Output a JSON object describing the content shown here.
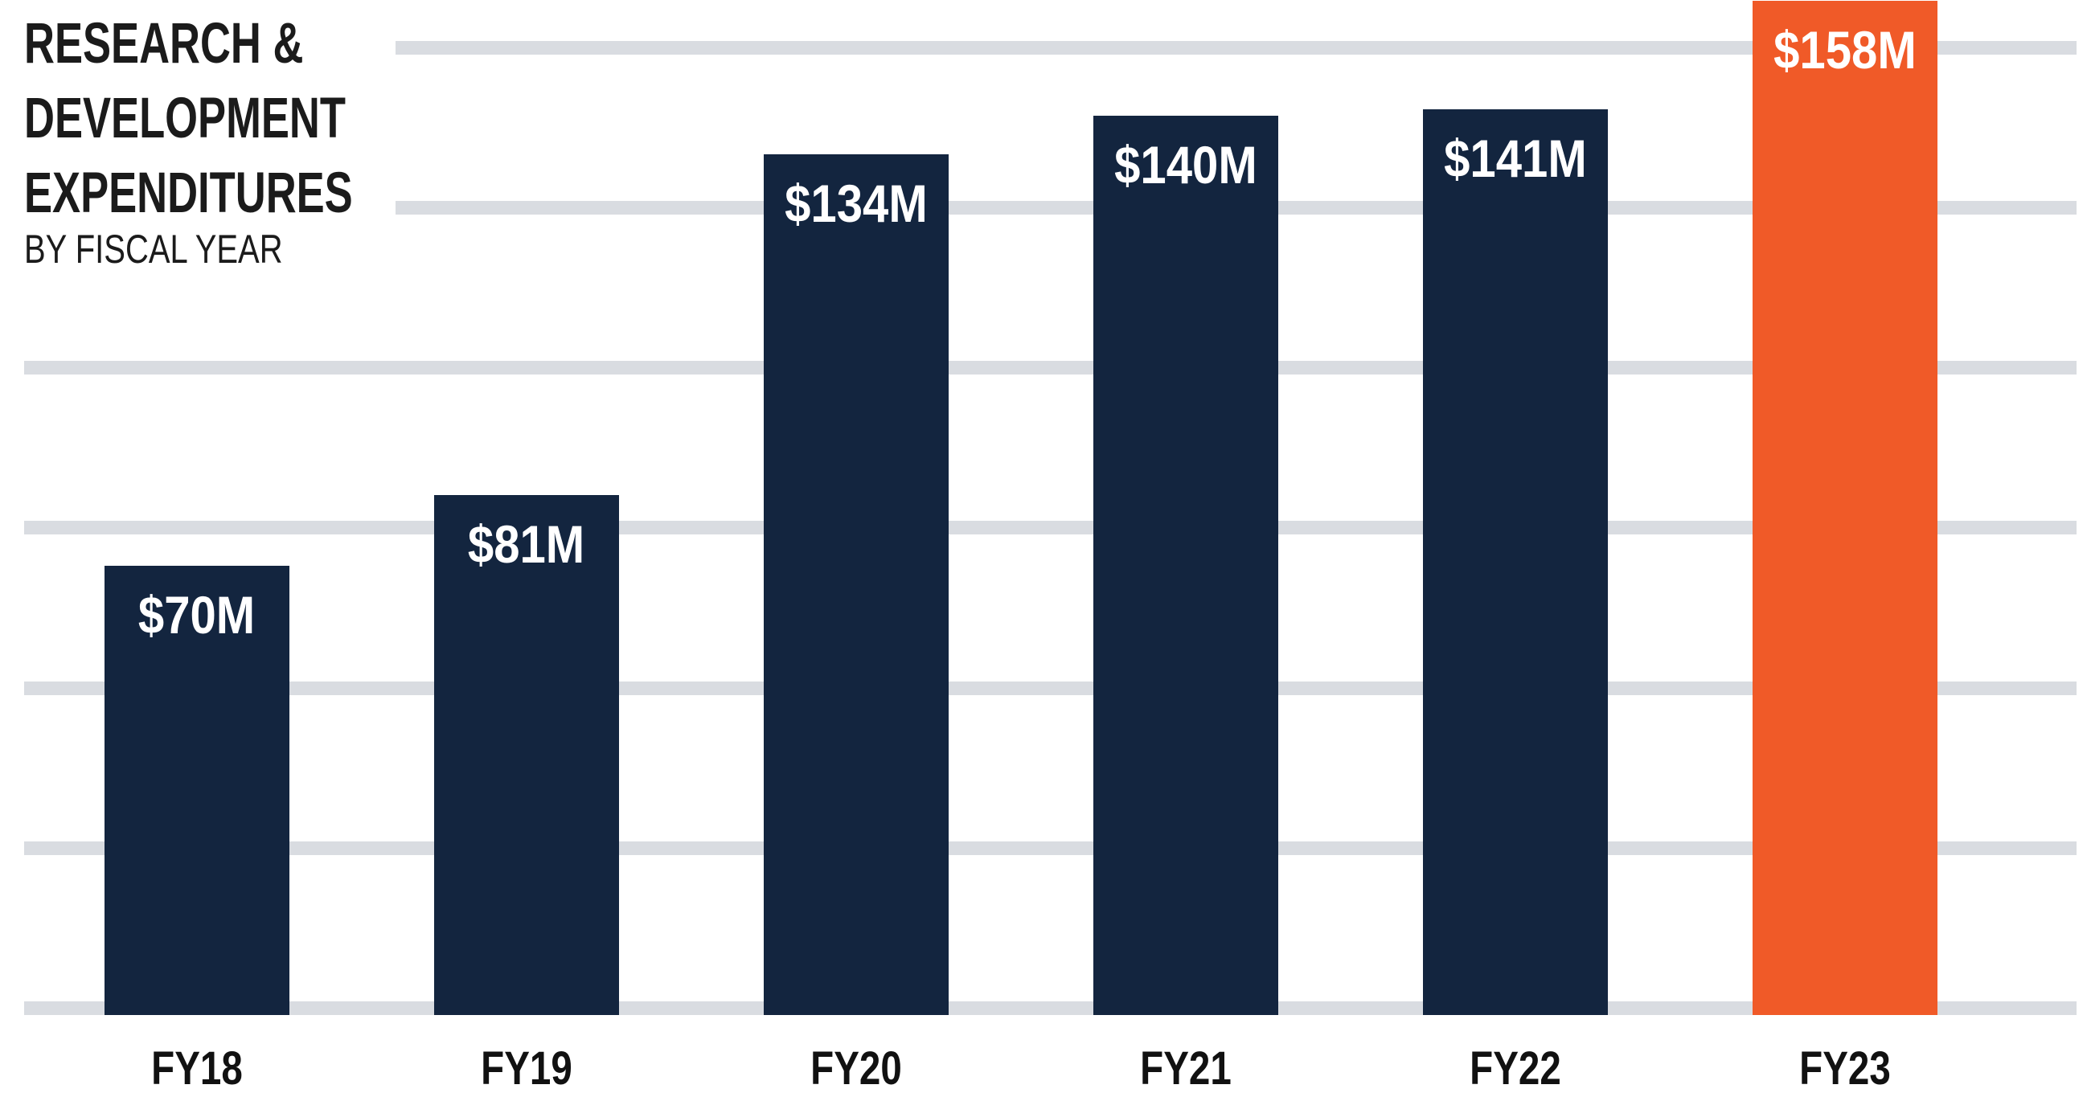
{
  "header": {
    "title_lines": [
      "RESEARCH &",
      "DEVELOPMENT",
      "EXPENDITURES"
    ],
    "subtitle": "BY FISCAL YEAR"
  },
  "chart_data": {
    "type": "bar",
    "title": "RESEARCH & DEVELOPMENT EXPENDITURES",
    "subtitle": "BY FISCAL YEAR",
    "categories": [
      "FY18",
      "FY19",
      "FY20",
      "FY21",
      "FY22",
      "FY23"
    ],
    "values": [
      70,
      81,
      134,
      140,
      141,
      158
    ],
    "bar_labels": [
      "$70M",
      "$81M",
      "$134M",
      "$140M",
      "$141M",
      "$158M"
    ],
    "unit": "$M",
    "highlight_index": 5,
    "highlight_category": "FY23",
    "colors": {
      "bar": "#13253F",
      "highlight": "#F05A28",
      "gridline": "#D9DCE1",
      "bar_label_text": "#FFFFFF",
      "axis_label_text": "#111111",
      "title_text": "#1B1B1B",
      "background": "#FFFFFF"
    },
    "xlabel": "",
    "ylabel": "",
    "ylim": [
      0,
      158
    ],
    "gridline_values": [
      0,
      25,
      50,
      75,
      100,
      125,
      150
    ],
    "grid": "horizontal",
    "legend": "none",
    "value_labels_position": "inside-top",
    "notes": "FY23 bar is highlighted in orange and is clipped by the top edge of the image"
  }
}
